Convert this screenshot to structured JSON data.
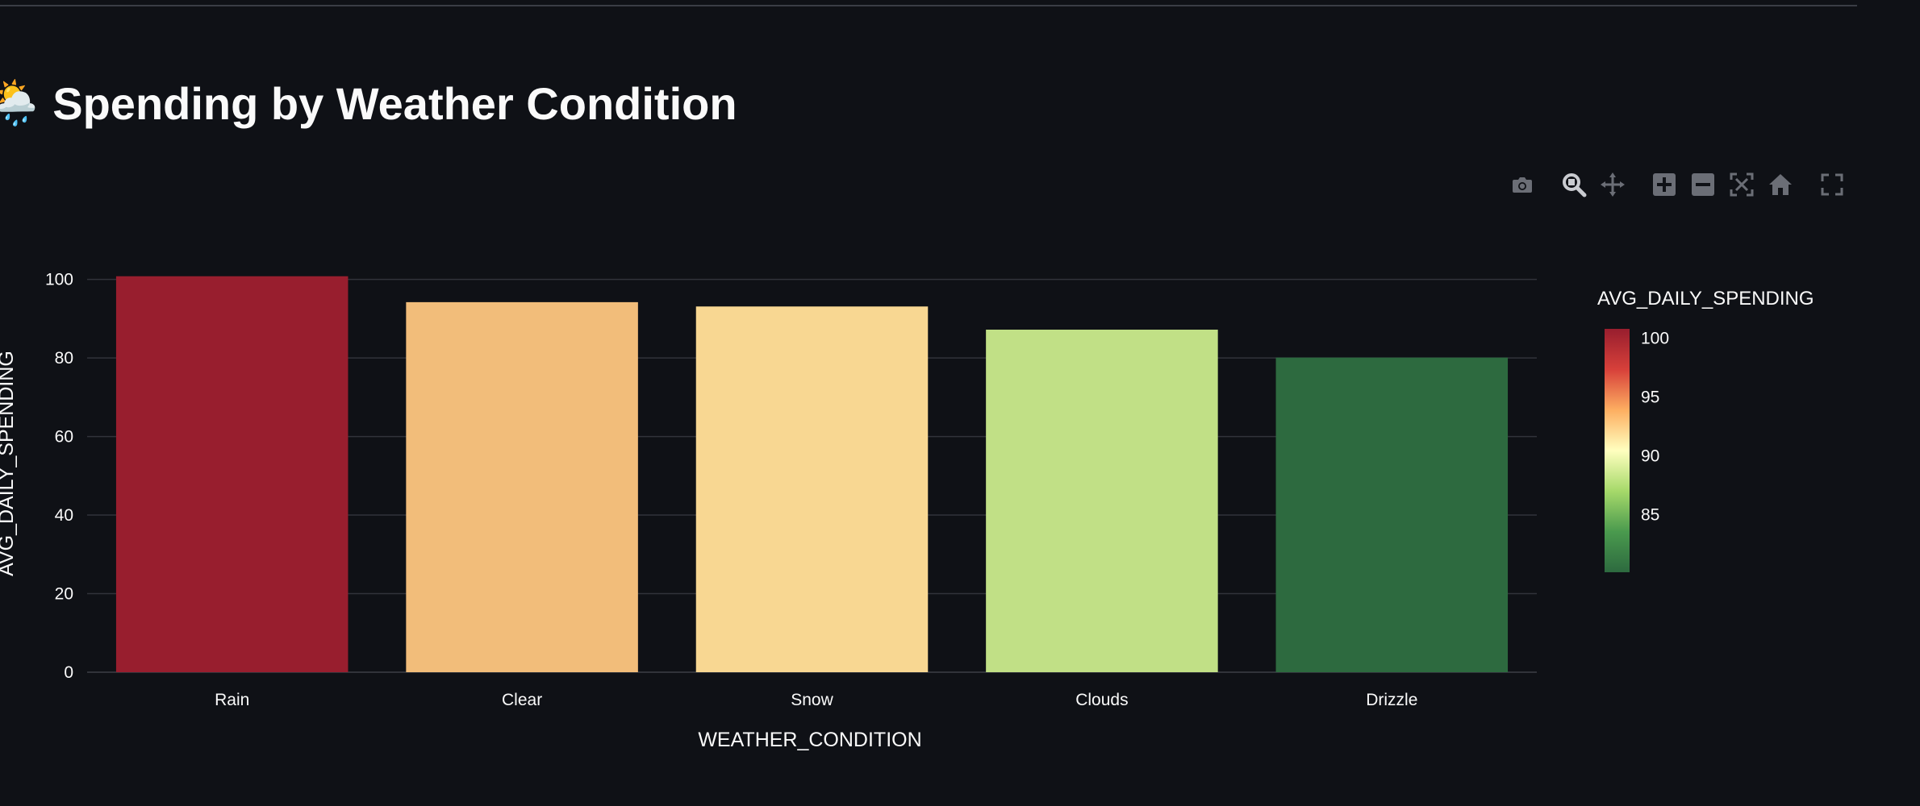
{
  "page": {
    "title_emoji": "🌦️",
    "title": "Spending by Weather Condition"
  },
  "modebar": {
    "buttons": [
      {
        "name": "camera-icon",
        "title": "Download plot as a png"
      },
      {
        "name": "zoom-icon",
        "title": "Zoom"
      },
      {
        "name": "pan-icon",
        "title": "Pan"
      },
      {
        "name": "zoom-in-icon",
        "title": "Zoom in"
      },
      {
        "name": "zoom-out-icon",
        "title": "Zoom out"
      },
      {
        "name": "autoscale-icon",
        "title": "Autoscale"
      },
      {
        "name": "home-icon",
        "title": "Reset axes"
      },
      {
        "name": "fullscreen-icon",
        "title": "Fullscreen"
      }
    ]
  },
  "colors": {
    "background": "#0f1116",
    "grid": "#31333a",
    "text": "#fafafa",
    "icon": "#6b6e76",
    "icon_active": "#c9cbd0"
  },
  "chart_data": {
    "type": "bar",
    "categories": [
      "Rain",
      "Clear",
      "Snow",
      "Clouds",
      "Drizzle"
    ],
    "values": [
      100.8,
      94.2,
      93.1,
      87.2,
      80.1
    ],
    "colors": [
      "#981e2e",
      "#f2bd7a",
      "#f8d792",
      "#c1e086",
      "#2d6a3f"
    ],
    "xlabel": "WEATHER_CONDITION",
    "ylabel": "AVG_DAILY_SPENDING",
    "ylim": [
      0,
      103
    ],
    "yticks": [
      0,
      20,
      40,
      60,
      80,
      100
    ],
    "grid": true,
    "legend": {
      "type": "colorbar",
      "title": "AVG_DAILY_SPENDING",
      "placement": "right",
      "range": [
        80.1,
        100.8
      ],
      "ticks": [
        85,
        90,
        95,
        100
      ],
      "colorscale": [
        "#2d6a3f",
        "#4a9a4e",
        "#a6d96a",
        "#ffffbf",
        "#fdae61",
        "#d7403a",
        "#981e2e"
      ]
    }
  }
}
